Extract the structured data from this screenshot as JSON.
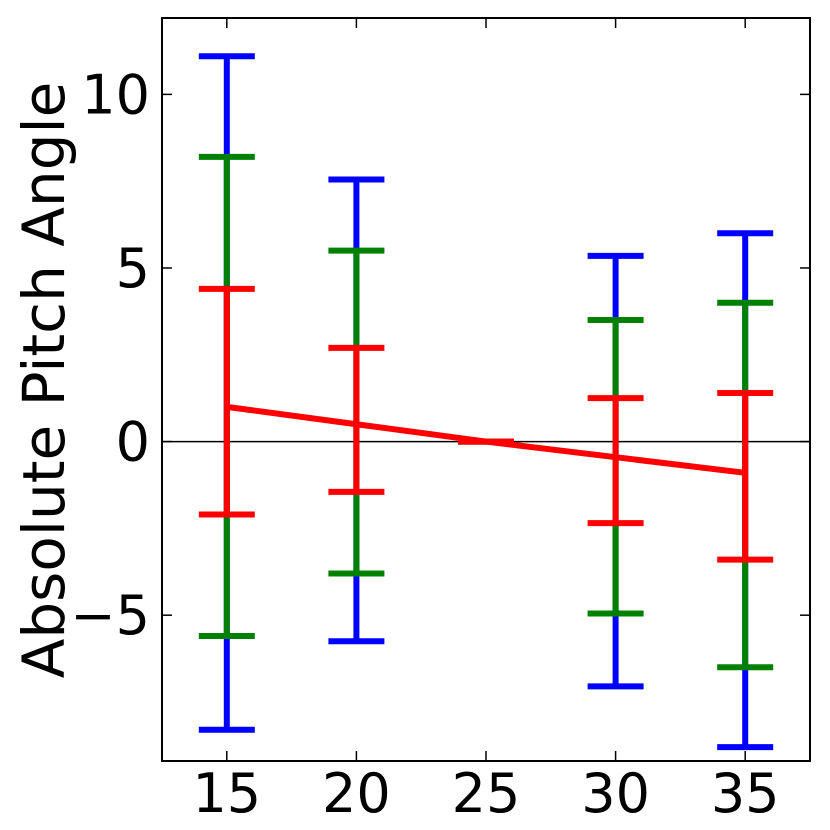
{
  "chart_data": {
    "type": "errorbar",
    "title": "",
    "xlabel": "",
    "ylabel": "Absolute Pitch Angle",
    "xlim": [
      12.5,
      37.5
    ],
    "ylim": [
      -9.2,
      12.2
    ],
    "x_ticks": [
      15,
      20,
      25,
      30,
      35
    ],
    "x_tick_labels": [
      "15",
      "20",
      "25",
      "30",
      "35"
    ],
    "y_ticks": [
      10,
      5,
      0,
      -5
    ],
    "y_tick_labels": [
      "10",
      "5",
      "0",
      "−5"
    ],
    "zero_line": true,
    "grid": false,
    "legend": "none",
    "x": [
      15,
      20,
      25,
      30,
      35
    ],
    "mean_line": {
      "color": "#ff0000",
      "values": [
        1.0,
        0.5,
        0.0,
        -0.45,
        -0.9
      ]
    },
    "error_bars": [
      {
        "color": "#0000ff",
        "lower": [
          -8.3,
          -5.75,
          0.0,
          -7.05,
          -8.8
        ],
        "upper": [
          11.1,
          7.55,
          0.0,
          5.35,
          6.0
        ]
      },
      {
        "color": "#008000",
        "lower": [
          -5.6,
          -3.8,
          0.0,
          -4.95,
          -6.5
        ],
        "upper": [
          8.2,
          5.5,
          0.0,
          3.5,
          4.0
        ]
      },
      {
        "color": "#ff0000",
        "lower": [
          -2.1,
          -1.45,
          0.0,
          -2.35,
          -3.4
        ],
        "upper": [
          4.4,
          2.7,
          0.0,
          1.25,
          1.4
        ]
      }
    ]
  }
}
